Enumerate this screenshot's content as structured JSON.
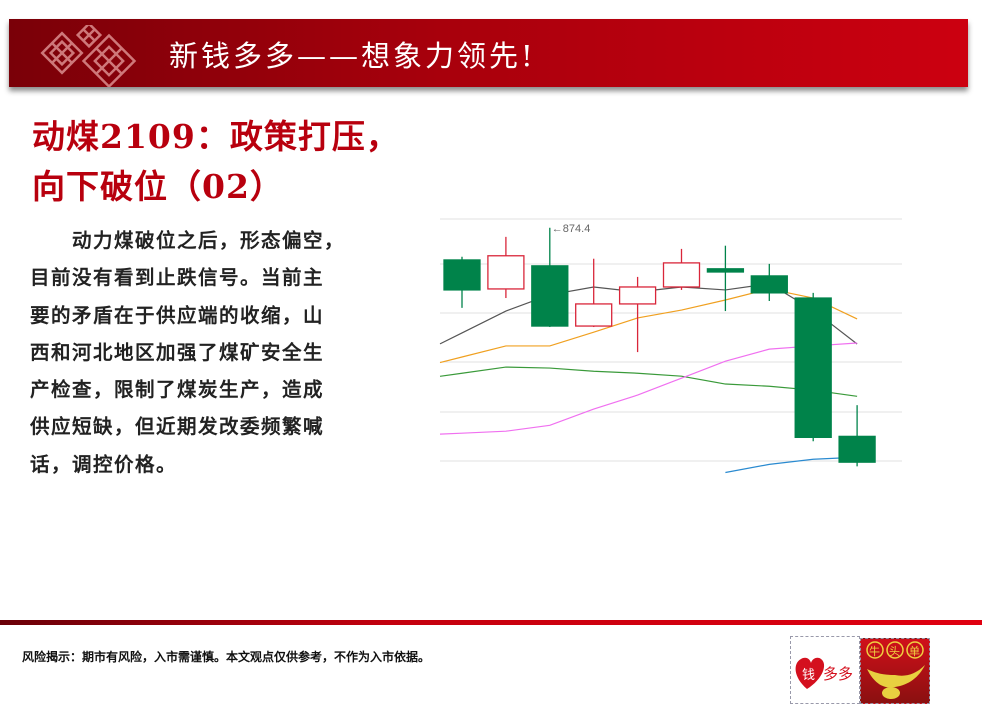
{
  "header": {
    "title": "新钱多多——想象力领先!"
  },
  "article": {
    "title_lines": [
      "动煤2109：政策打压，",
      "向下破位（02）"
    ],
    "body_lines": [
      "　　动力煤破位之后，形态偏空，",
      "目前没有看到止跌信号。当前主",
      "要的矛盾在于供应端的收缩，山",
      "西和河北地区加强了煤矿安全生",
      "产检查，限制了煤炭生产，造成",
      "供应短缺，但近期发改委频繁喊",
      "话，调控价格。"
    ]
  },
  "footer": {
    "risk_notice": "风险揭示：期市有风险，入市需谨慎。本文观点仅供参考，不作为入市依据。",
    "logo_left_text": "钱多多",
    "logo_right_text": "牛头单"
  },
  "colors": {
    "up": "#d9263a",
    "down": "#00834a",
    "header": "#b0000c",
    "title": "#b8000e"
  },
  "chart_data": {
    "type": "candlestick",
    "ylim": [
      775,
      880
    ],
    "grid": true,
    "annotation": {
      "text": "←874.4",
      "candle_index": 2,
      "value": 874.4
    },
    "candles": [
      {
        "open": 861.3,
        "high": 862.6,
        "low": 841.8,
        "close": 849.1
      },
      {
        "open": 849.5,
        "high": 870.7,
        "low": 845.8,
        "close": 863.0
      },
      {
        "open": 858.9,
        "high": 874.4,
        "low": 834.0,
        "close": 834.4
      },
      {
        "open": 834.4,
        "high": 861.8,
        "low": 834.0,
        "close": 843.4
      },
      {
        "open": 843.4,
        "high": 854.4,
        "low": 823.8,
        "close": 850.3
      },
      {
        "open": 850.3,
        "high": 865.8,
        "low": 849.1,
        "close": 860.1
      },
      {
        "open": 857.7,
        "high": 867.1,
        "low": 840.5,
        "close": 856.4
      },
      {
        "open": 854.8,
        "high": 859.7,
        "low": 844.6,
        "close": 847.9
      },
      {
        "open": 845.8,
        "high": 847.9,
        "low": 787.5,
        "close": 789.1
      },
      {
        "open": 789.5,
        "high": 802.2,
        "low": 777.3,
        "close": 779.0
      }
    ],
    "moving_averages": [
      {
        "color": "#555555",
        "values": [
          831.6,
          840.5,
          847.1,
          850.3,
          848.3,
          850.3,
          849.1,
          851.6,
          840.9,
          827.1
        ]
      },
      {
        "color": "#f0a020",
        "values": [
          821.8,
          826.3,
          826.3,
          831.9,
          837.7,
          840.9,
          845.0,
          849.5,
          845.8,
          837.3
        ]
      },
      {
        "color": "#3a9a3a",
        "values": [
          815.2,
          817.7,
          817.3,
          816.0,
          815.2,
          814.0,
          810.8,
          809.9,
          808.3,
          805.8
        ]
      },
      {
        "color": "#f070f0",
        "values": [
          790.8,
          791.6,
          794.0,
          800.6,
          806.3,
          813.2,
          820.1,
          825.0,
          826.3,
          827.5
        ]
      },
      {
        "color": "#2a8ad0",
        "values": [
          null,
          null,
          null,
          null,
          null,
          null,
          774.8,
          778.1,
          780.2,
          781.0
        ]
      }
    ]
  }
}
